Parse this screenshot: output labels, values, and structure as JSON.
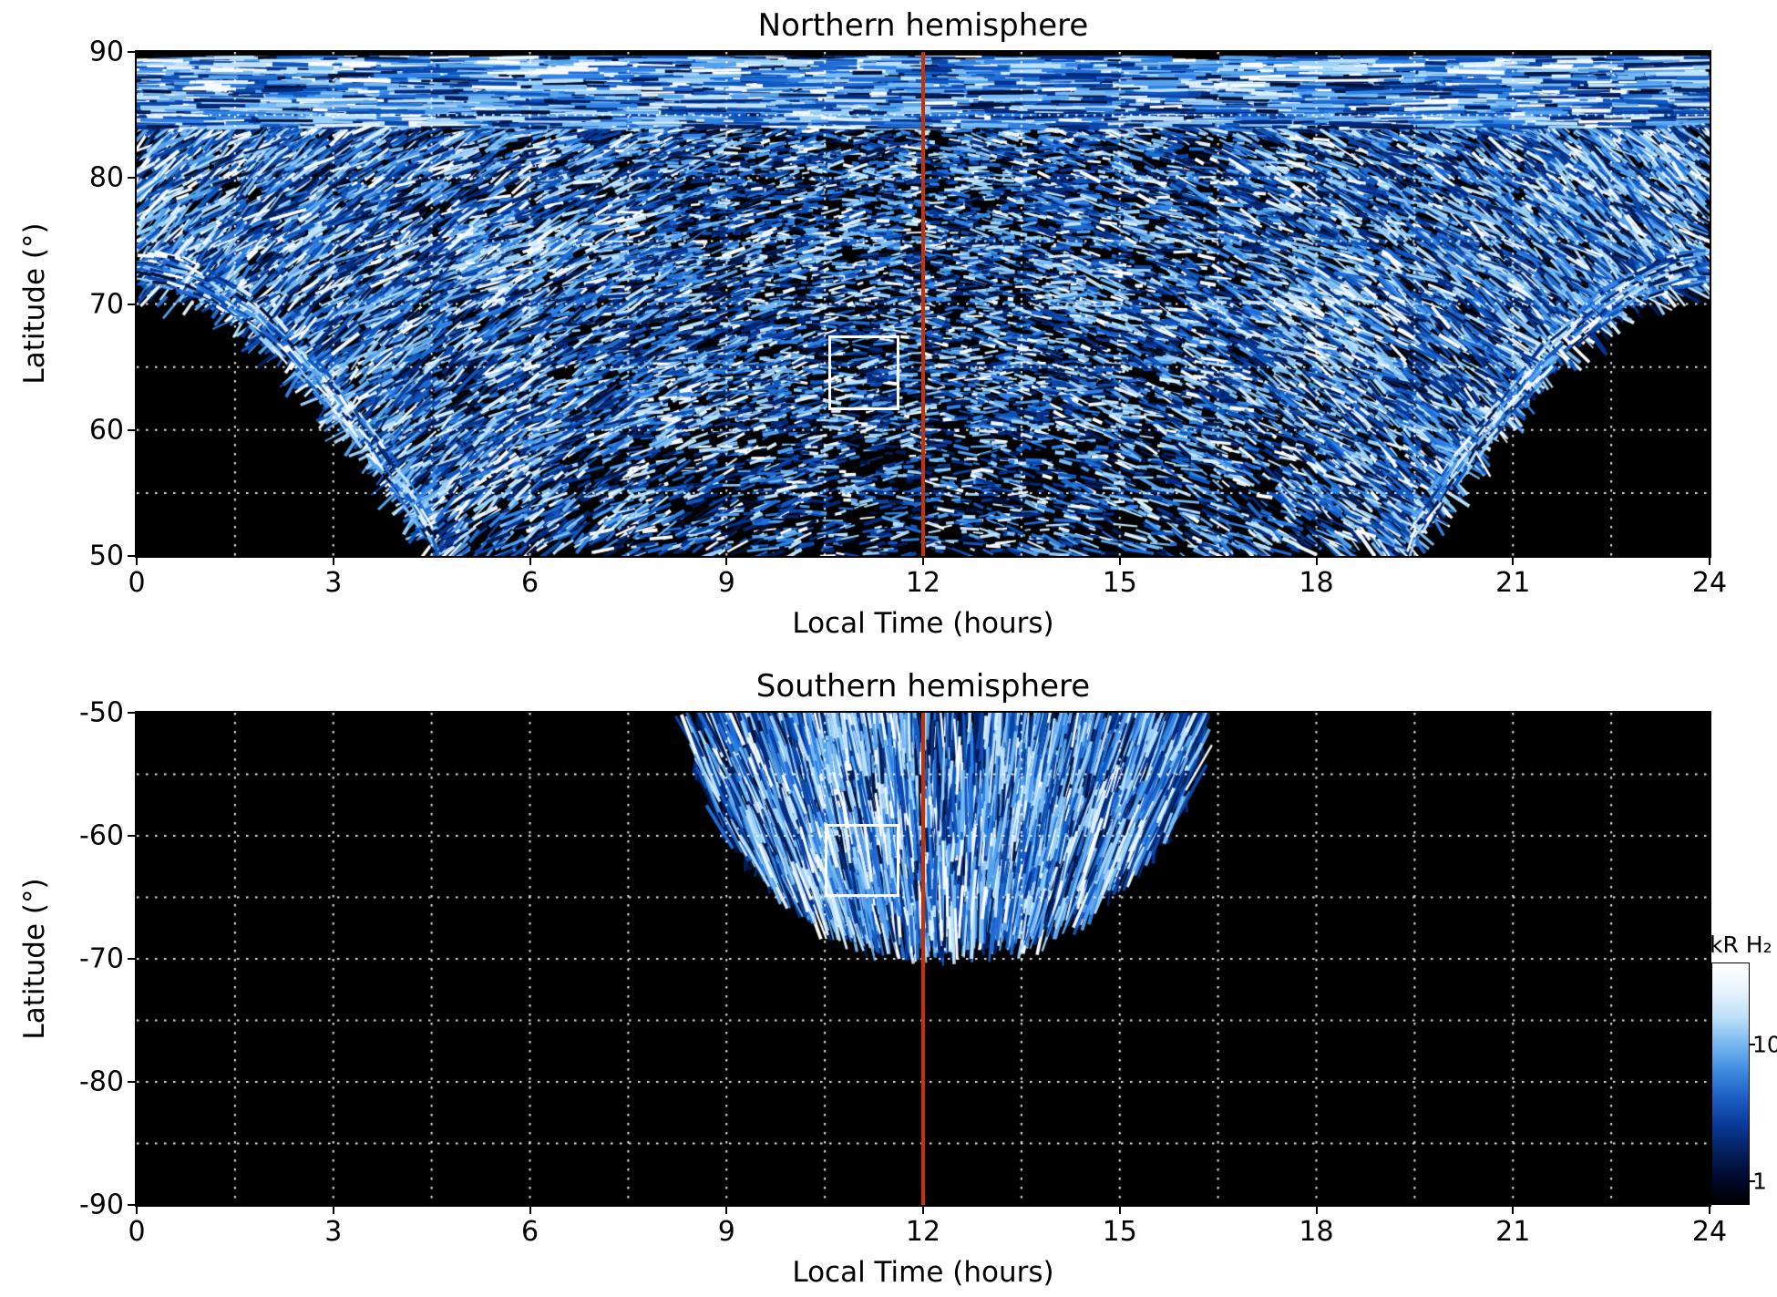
{
  "figure": {
    "background": "#ffffff",
    "colorbar": {
      "label": "kR H₂",
      "scale": "log",
      "tick_labels": [
        "10",
        "1"
      ],
      "tick_fractions_from_top": [
        0.34,
        0.91
      ],
      "gradient": [
        "#ffffff",
        "#e8f4fd",
        "#bfe0f8",
        "#7ab8ef",
        "#3f8ce0",
        "#1d5fc4",
        "#0a3a9a",
        "#04205f",
        "#010a2e",
        "#000000"
      ]
    }
  },
  "chart_data": [
    {
      "type": "heatmap",
      "panel": "north",
      "title": "Northern hemisphere",
      "xlabel": "Local Time (hours)",
      "ylabel": "Latitude (°)",
      "quantity": "H2 auroral emission brightness (kR)",
      "xlim": [
        0,
        24
      ],
      "ylim": [
        50,
        90
      ],
      "xticks": [
        0,
        3,
        6,
        9,
        12,
        15,
        18,
        21,
        24
      ],
      "yticks": [
        90,
        80,
        70,
        60,
        50
      ],
      "grid": {
        "color": "#ffffff",
        "style": "dotted",
        "x_step_hours": 1.5,
        "y_step_deg": 5
      },
      "noon_line": {
        "local_time": 12,
        "color": "#c83200"
      },
      "roi_box": {
        "local_time_range": [
          10.55,
          11.55
        ],
        "latitude_range": [
          62,
          67.5
        ],
        "color": "#ffffff"
      },
      "value_range_kR": [
        1,
        40
      ],
      "coverage_boundary": [
        {
          "lt": 0,
          "lat": 71.5
        },
        {
          "lt": 2,
          "lat": 66
        },
        {
          "lt": 3.5,
          "lat": 58
        },
        {
          "lt": 4.6,
          "lat": 50
        },
        {
          "lt": 12,
          "lat": 50
        },
        {
          "lt": 19.4,
          "lat": 50
        },
        {
          "lt": 20.5,
          "lat": 58
        },
        {
          "lt": 22,
          "lat": 66
        },
        {
          "lt": 24,
          "lat": 71.5
        }
      ],
      "bright_regions": [
        {
          "lt": [
            0,
            1.3
          ],
          "lat": [
            68,
            88
          ]
        },
        {
          "lt": [
            5,
            7.6
          ],
          "lat": [
            71,
            76.5
          ]
        },
        {
          "lt": [
            9.4,
            11.6
          ],
          "lat": [
            72.5,
            76
          ]
        },
        {
          "lt": [
            13.5,
            15
          ],
          "lat": [
            70,
            74
          ]
        },
        {
          "lt": [
            17.4,
            19.3
          ],
          "lat": [
            63,
            74
          ]
        },
        {
          "lt": [
            22.2,
            24
          ],
          "lat": [
            66,
            86
          ]
        },
        {
          "lt": [
            0,
            24
          ],
          "lat": [
            88.2,
            89.4
          ]
        }
      ],
      "texture": "dense speckled blue/white emission arcs on black; full local-time coverage above ~72°, extending to 50° between ~4.6 h and ~19.4 h; sparse salt-and-pepper below ~60° near noon; black no-data corners at lower left and lower right"
    },
    {
      "type": "heatmap",
      "panel": "south",
      "title": "Southern hemisphere",
      "xlabel": "Local Time (hours)",
      "ylabel": "Latitude (°)",
      "quantity": "H2 auroral emission brightness (kR)",
      "xlim": [
        0,
        24
      ],
      "ylim": [
        -90,
        -50
      ],
      "xticks": [
        0,
        3,
        6,
        9,
        12,
        15,
        18,
        21,
        24
      ],
      "yticks": [
        -50,
        -60,
        -70,
        -80,
        -90
      ],
      "grid": {
        "color": "#ffffff",
        "style": "dotted",
        "x_step_hours": 1.5,
        "y_step_deg": 5
      },
      "noon_line": {
        "local_time": 12,
        "color": "#c83200"
      },
      "roi_box": {
        "local_time_range": [
          10.5,
          11.55
        ],
        "latitude_range": [
          -64.5,
          -59
        ],
        "color": "#ffffff"
      },
      "value_range_kR": [
        1,
        40
      ],
      "coverage_boundary": [
        {
          "lt": 8.4,
          "lat": -50
        },
        {
          "lt": 9.3,
          "lat": -57
        },
        {
          "lt": 10.5,
          "lat": -62.5
        },
        {
          "lt": 12.35,
          "lat": -68.5
        },
        {
          "lt": 14,
          "lat": -64
        },
        {
          "lt": 15.3,
          "lat": -57
        },
        {
          "lt": 16.3,
          "lat": -50
        }
      ],
      "bright_regions": [
        {
          "lt": [
            10.2,
            11.85
          ],
          "lat": [
            -66,
            -52
          ]
        },
        {
          "lt": [
            13.0,
            14.6
          ],
          "lat": [
            -63,
            -51
          ]
        }
      ],
      "dark_regions": [
        {
          "lt": [
            11.85,
            13.0
          ],
          "lat": [
            -56,
            -50
          ]
        }
      ],
      "texture": "fan of near-vertical radial emission streaks between ~8.4 h and ~16.3 h reaching down to ~-68.5°, converging toward ~12.4 h; rest of panel black (no data)"
    }
  ]
}
